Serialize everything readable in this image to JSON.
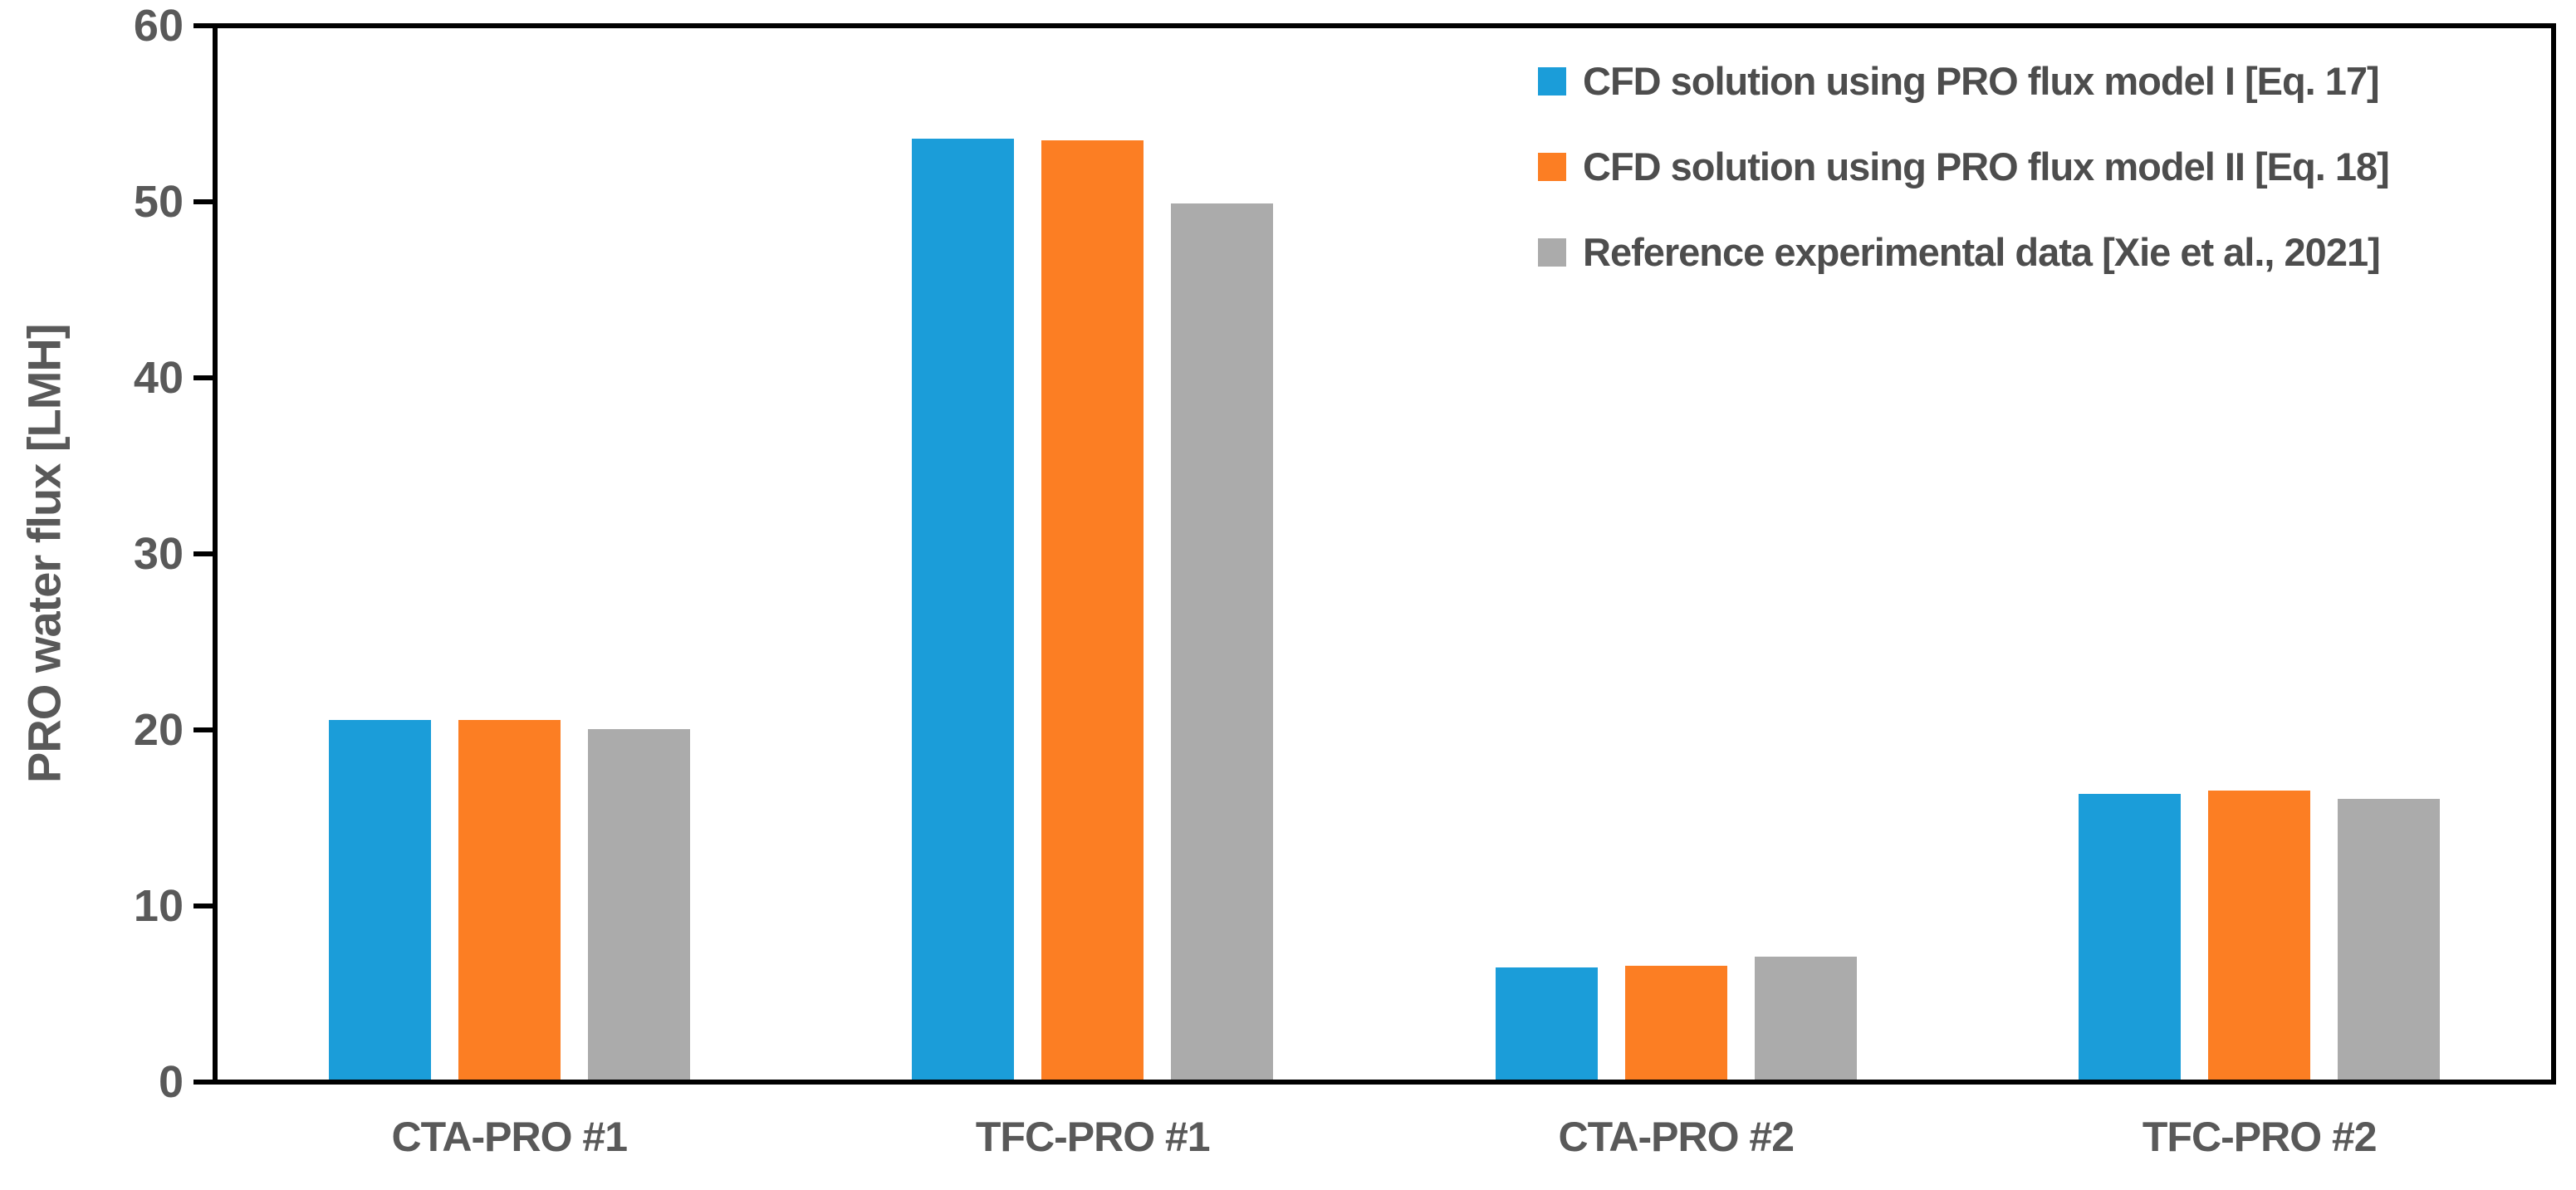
{
  "chart_data": {
    "type": "bar",
    "title": "",
    "ylabel": "PRO water flux [LMH]",
    "xlabel": "",
    "ylim": [
      0,
      60
    ],
    "yticks": [
      0,
      10,
      20,
      30,
      40,
      50,
      60
    ],
    "grid": false,
    "legend_position": "top-right-inside",
    "axis_color": "#000000",
    "tick_label_color": "#595959",
    "categories": [
      "CTA-PRO #1",
      "TFC-PRO #1",
      "CTA-PRO #2",
      "TFC-PRO #2"
    ],
    "series": [
      {
        "name": "CFD solution using PRO flux model I [Eq. 17]",
        "color": "#1B9DD9",
        "textured": false,
        "values": [
          20.5,
          53.7,
          6.4,
          16.3
        ]
      },
      {
        "name": "CFD solution using PRO flux model II [Eq. 18]",
        "color": "#FC7E23",
        "textured": false,
        "values": [
          20.5,
          53.6,
          6.5,
          16.5
        ]
      },
      {
        "name": "Reference experimental data [Xie et al., 2021]",
        "color": "#ABABAB",
        "textured": true,
        "values": [
          20.0,
          50.0,
          7.0,
          16.0
        ]
      }
    ]
  }
}
